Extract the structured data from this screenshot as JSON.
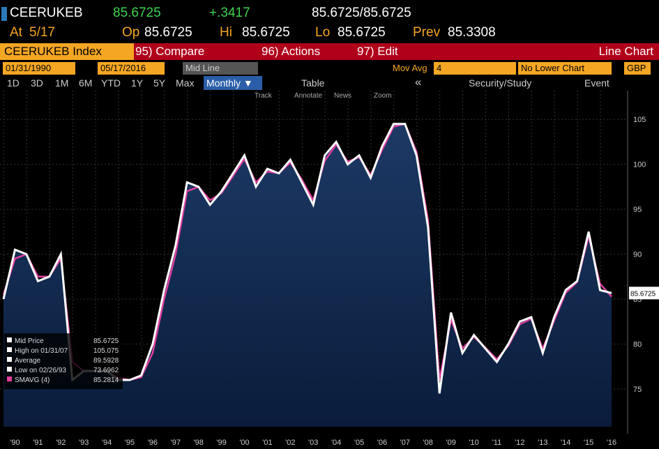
{
  "header": {
    "ticker": "CEERUKEB",
    "last": "85.6725",
    "change": "+.3417",
    "bidask": "85.6725/85.6725",
    "stats": [
      {
        "label": "At",
        "value": "5/17"
      },
      {
        "label": "Op",
        "value": "85.6725"
      },
      {
        "label": "Hi",
        "value": "85.6725"
      },
      {
        "label": "Lo",
        "value": "85.6725"
      },
      {
        "label": "Prev",
        "value": "85.3308"
      }
    ]
  },
  "toolbar": {
    "security": "CEERUKEB Index",
    "compare": "95) Compare",
    "actions": "96) Actions",
    "edit": "97) Edit",
    "chart_type": "Line Chart",
    "start_date": "01/31/1990",
    "end_date": "05/17/2016",
    "line_mode": "Mid Line",
    "mov_avg_label": "Mov Avg",
    "mov_avg": "4",
    "lower_chart": "No Lower Chart",
    "currency": "GBP",
    "periods": [
      "1D",
      "3D",
      "1M",
      "6M",
      "YTD",
      "1Y",
      "5Y",
      "Max"
    ],
    "frequency": "Monthly ▼",
    "table": "Table",
    "back": "«",
    "study": "Security/Study",
    "event": "Event",
    "tools": [
      "Track",
      "Annotate",
      "News",
      "Zoom"
    ]
  },
  "chart_data": {
    "type": "line",
    "categories": [
      null,
      "'90",
      null,
      "'91",
      null,
      "'92",
      null,
      "'93",
      null,
      "'94",
      null,
      "'95",
      null,
      "'96",
      null,
      "'97",
      null,
      "'98",
      null,
      "'99",
      null,
      "'00",
      null,
      "'01",
      null,
      "'02",
      null,
      "'03",
      null,
      "'04",
      null,
      "'05",
      null,
      "'06",
      null,
      "'07",
      null,
      "'08",
      null,
      "'09",
      null,
      "'10",
      null,
      "'11",
      null,
      "'12",
      null,
      "'13",
      null,
      "'14",
      null,
      "'15",
      null,
      "'16"
    ],
    "series": [
      {
        "name": "Mid Price",
        "color": "#ffffff",
        "values": [
          85,
          90.5,
          90,
          87,
          87.5,
          90,
          76,
          77,
          77,
          77,
          76,
          76,
          76.5,
          80,
          86,
          91,
          98,
          97.5,
          95.5,
          97,
          99,
          101,
          97.5,
          99.5,
          99,
          100.5,
          98,
          95.5,
          101,
          102.5,
          100,
          101,
          98.5,
          102,
          104.5,
          104.5,
          101,
          93,
          74.5,
          83.5,
          79,
          81,
          79.5,
          78,
          80,
          82.5,
          83,
          79,
          83,
          86,
          87,
          92.5,
          86,
          85.6725
        ]
      },
      {
        "name": "SMAVG (4)",
        "color": "#e040a0",
        "values": [
          85.5,
          89.5,
          90,
          87.5,
          87.5,
          89.5,
          78,
          77,
          77,
          77,
          76.2,
          76,
          76.3,
          79,
          85,
          90,
          97,
          97.5,
          96,
          96.8,
          98.7,
          100.6,
          98,
          99.2,
          99,
          100.2,
          98.3,
          96,
          100.4,
          102.2,
          100.3,
          100.8,
          98.8,
          101.6,
          104.2,
          104.5,
          101.4,
          93.8,
          76,
          82.7,
          79.5,
          80.8,
          79.6,
          78.3,
          79.8,
          82.2,
          82.8,
          79.5,
          82.6,
          85.7,
          86.9,
          92,
          86.7,
          85.2814
        ]
      }
    ],
    "ylim": [
      70.8,
      108.2
    ],
    "yticks": [
      75,
      80,
      85,
      90,
      95,
      100,
      105
    ],
    "legend": [
      {
        "label": "Mid Price",
        "value": "85.6725"
      },
      {
        "label": "High on 01/31/07",
        "value": "105.075"
      },
      {
        "label": "Average",
        "value": "89.5928"
      },
      {
        "label": "Low on 02/26/93",
        "value": "73.6962"
      },
      {
        "label": "SMAVG (4)",
        "value": "85.2814"
      }
    ],
    "price_tag": "85.6725"
  }
}
